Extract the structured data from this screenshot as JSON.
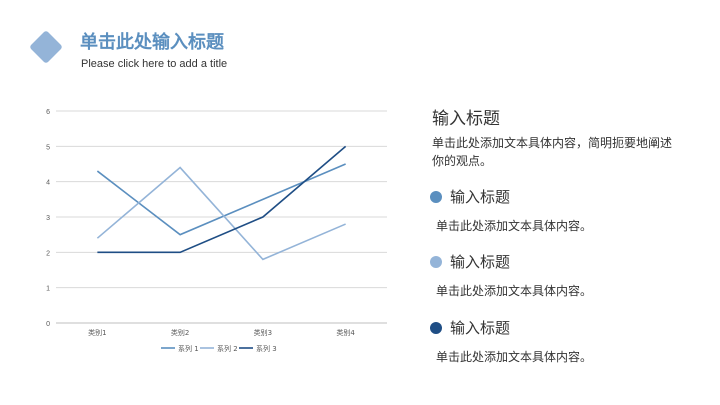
{
  "header": {
    "title": "单击此处输入标题",
    "subtitle": "Please click here to add a title"
  },
  "side": {
    "title": "输入标题",
    "description": "单击此处添加文本具体内容，简明扼要地阐述你的观点。",
    "items": [
      {
        "label": "输入标题",
        "text": "单击此处添加文本具体内容。",
        "color": "#5b8fbf"
      },
      {
        "label": "输入标题",
        "text": "单击此处添加文本具体内容。",
        "color": "#94b4d8"
      },
      {
        "label": "输入标题",
        "text": "单击此处添加文本具体内容。",
        "color": "#1f4e85"
      }
    ]
  },
  "chart_data": {
    "type": "line",
    "categories": [
      "类别1",
      "类别2",
      "类别3",
      "类别4"
    ],
    "series": [
      {
        "name": "系列 1",
        "values": [
          4.3,
          2.5,
          3.5,
          4.5
        ],
        "color": "#5b8fbf"
      },
      {
        "name": "系列 2",
        "values": [
          2.4,
          4.4,
          1.8,
          2.8
        ],
        "color": "#94b4d8"
      },
      {
        "name": "系列 3",
        "values": [
          2,
          2,
          3,
          5
        ],
        "color": "#1f4e85"
      }
    ],
    "ylim": [
      0,
      6
    ],
    "yticks": [
      "0",
      "1",
      "2",
      "3",
      "4",
      "5",
      "6"
    ],
    "grid": true,
    "legend": "bottom"
  }
}
